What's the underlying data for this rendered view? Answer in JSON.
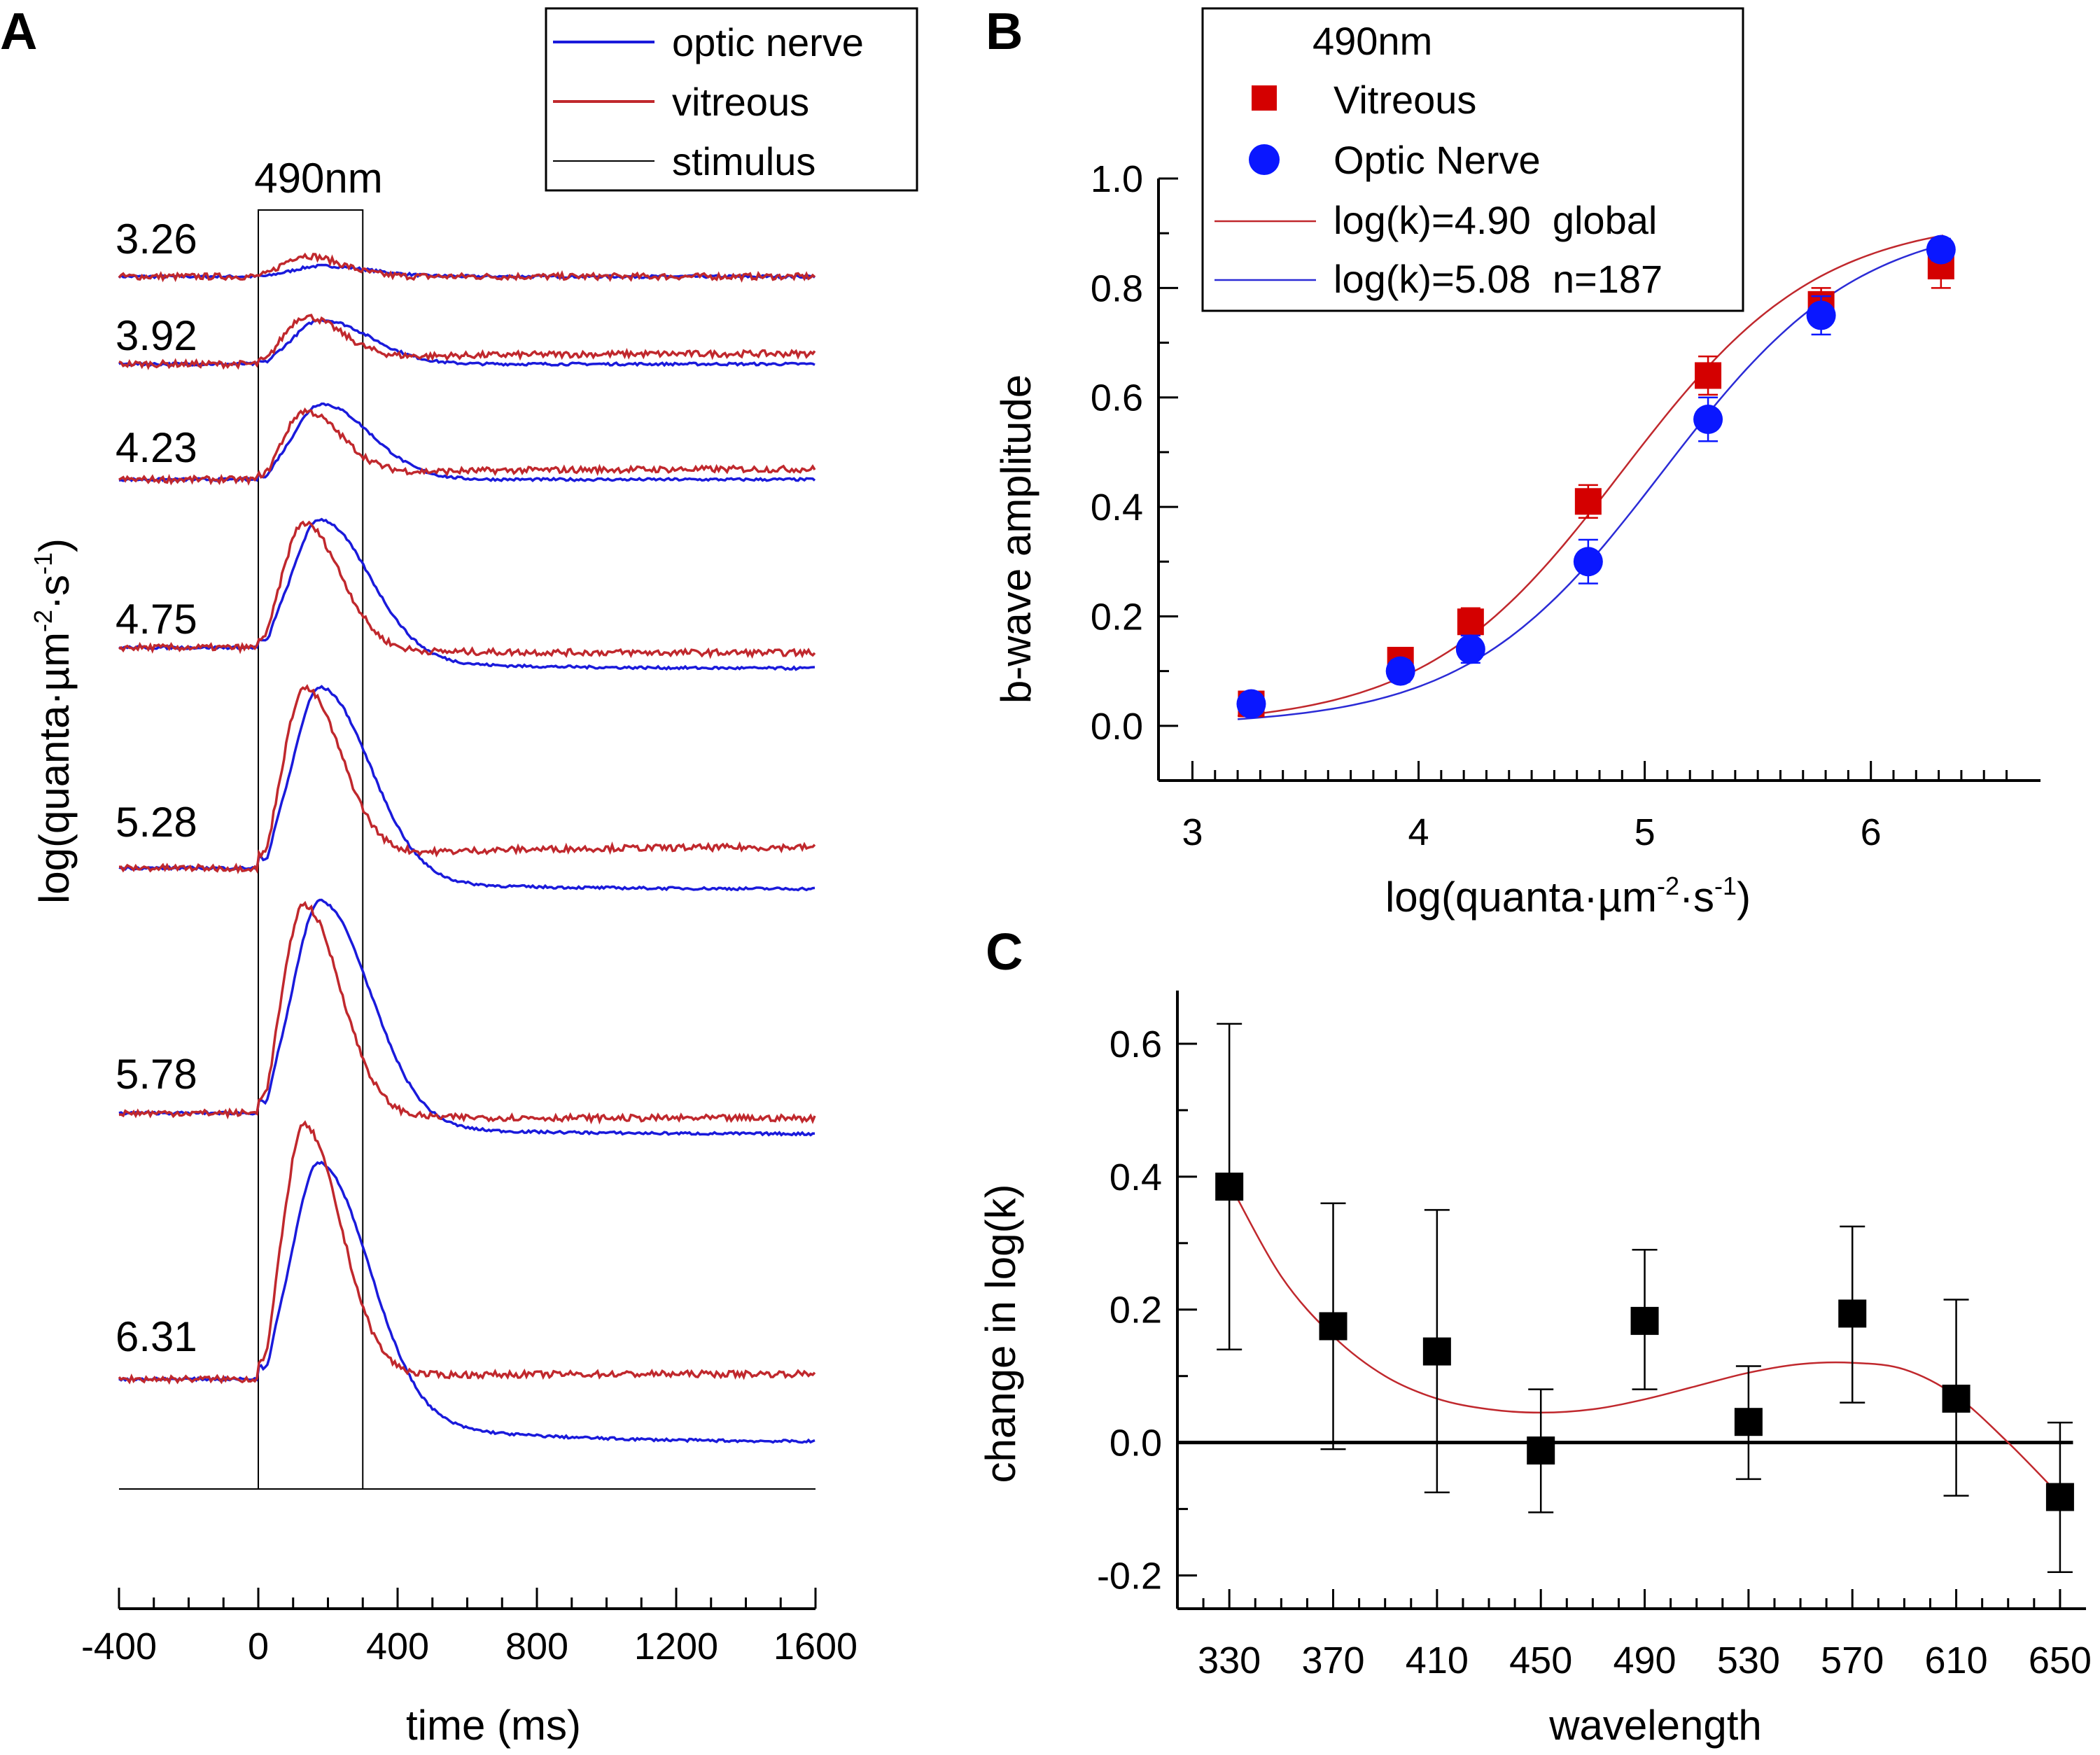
{
  "chart_data": [
    {
      "panel": "A",
      "type": "line",
      "xlabel": "time (ms)",
      "ylabel": "log(quanta·µm-2·s-1)",
      "ylabel_parts": {
        "base": "log(quanta·µm",
        "exp1": "-2",
        "mid": "·s",
        "exp2": "-1",
        "end": ")"
      },
      "xlim": [
        -400,
        1600
      ],
      "xticks": [
        -400,
        0,
        400,
        800,
        1200,
        1600
      ],
      "stimulus_label": "490nm",
      "stimulus_window_ms": [
        0,
        300
      ],
      "legend_placement": "top-right",
      "legend": [
        {
          "name": "optic nerve",
          "color": "#1a1adb"
        },
        {
          "name": "vitreous",
          "color": "#c0282d"
        },
        {
          "name": "stimulus",
          "color": "#000000"
        }
      ],
      "traces": [
        {
          "label": "3.26",
          "base_on": 0.0,
          "base_vit": 0.0,
          "amp_on": 0.1,
          "amp_vit": 0.2,
          "end_on": 0.0,
          "end_vit": 0.0
        },
        {
          "label": "3.92",
          "base_on": 0.0,
          "base_vit": 0.0,
          "amp_on": 0.42,
          "amp_vit": 0.42,
          "end_on": 0.0,
          "end_vit": 0.1
        },
        {
          "label": "4.23",
          "base_on": 0.0,
          "base_vit": 0.0,
          "amp_on": 0.72,
          "amp_vit": 0.62,
          "end_on": 0.0,
          "end_vit": 0.1
        },
        {
          "label": "4.75",
          "base_on": 0.0,
          "base_vit": 0.0,
          "amp_on": 1.3,
          "amp_vit": 1.2,
          "end_on": -0.2,
          "end_vit": -0.05
        },
        {
          "label": "5.28",
          "base_on": 0.0,
          "base_vit": 0.0,
          "amp_on": 1.8,
          "amp_vit": 1.65,
          "end_on": -0.2,
          "end_vit": 0.2
        },
        {
          "label": "5.78",
          "base_on": 0.0,
          "base_vit": 0.0,
          "amp_on": 2.1,
          "amp_vit": 2.0,
          "end_on": -0.2,
          "end_vit": -0.05
        },
        {
          "label": "6.31",
          "base_on": 0.0,
          "base_vit": 0.0,
          "amp_on": 2.3,
          "amp_vit": 2.4,
          "end_on": -0.6,
          "end_vit": 0.05
        }
      ]
    },
    {
      "panel": "B",
      "type": "scatter",
      "xlabel": "log(quanta·µm-2·s-1)",
      "xlabel_parts": {
        "base": "log(quanta·µm",
        "exp1": "-2",
        "mid": "·s",
        "exp2": "-1",
        "end": ")"
      },
      "ylabel": "b-wave amplitude",
      "xlim": [
        2.85,
        6.75
      ],
      "ylim": [
        -0.1,
        1.0
      ],
      "xticks": [
        3,
        4,
        5,
        6
      ],
      "yticks": [
        0.0,
        0.2,
        0.4,
        0.6,
        0.8,
        1.0
      ],
      "legend_title": "490nm",
      "legend_placement": "top-left",
      "series": [
        {
          "name": "Vitreous",
          "color": "#d40000",
          "marker": "square",
          "x": [
            3.26,
            3.92,
            4.23,
            4.75,
            5.28,
            5.78,
            6.31
          ],
          "y": [
            0.04,
            0.12,
            0.19,
            0.41,
            0.64,
            0.77,
            0.84
          ],
          "err": [
            0.02,
            0.02,
            0.025,
            0.03,
            0.035,
            0.03,
            0.04
          ]
        },
        {
          "name": "Optic Nerve",
          "color": "#0a17ff",
          "marker": "circle",
          "x": [
            3.26,
            3.92,
            4.23,
            4.75,
            5.28,
            5.78,
            6.31
          ],
          "y": [
            0.04,
            0.1,
            0.14,
            0.3,
            0.56,
            0.75,
            0.87
          ],
          "err": [
            0.015,
            0.02,
            0.025,
            0.04,
            0.04,
            0.035,
            0.02
          ]
        }
      ],
      "fits": [
        {
          "label": "log(k)=4.90  global",
          "logk": 4.9,
          "color": "#c0282d"
        },
        {
          "label": "log(k)=5.08  n=187",
          "logk": 5.08,
          "color": "#2b2bd6"
        }
      ]
    },
    {
      "panel": "C",
      "type": "scatter",
      "xlabel": "wavelength",
      "ylabel": "change in log(k)",
      "xlim": [
        310,
        660
      ],
      "ylim": [
        -0.25,
        0.68
      ],
      "xticks": [
        330,
        370,
        410,
        450,
        490,
        530,
        570,
        610,
        650
      ],
      "yticks": [
        -0.2,
        0.0,
        0.2,
        0.4,
        0.6
      ],
      "series": [
        {
          "name": "",
          "color": "#000000",
          "marker": "square",
          "x": [
            330,
            370,
            410,
            450,
            490,
            530,
            570,
            610,
            650
          ],
          "y": [
            0.385,
            0.175,
            0.137,
            -0.012,
            0.183,
            0.031,
            0.194,
            0.066,
            -0.082
          ],
          "err_hi": [
            0.63,
            0.36,
            0.35,
            0.08,
            0.29,
            0.115,
            0.325,
            0.215,
            0.03
          ],
          "err_lo": [
            0.14,
            -0.01,
            -0.075,
            -0.105,
            0.08,
            -0.055,
            0.06,
            -0.08,
            -0.195
          ]
        }
      ],
      "fit_color": "#c0282d",
      "fit_curve": {
        "x": [
          330,
          350,
          370,
          390,
          410,
          430,
          450,
          470,
          490,
          510,
          530,
          550,
          570,
          590,
          610,
          630,
          650
        ],
        "y": [
          0.39,
          0.25,
          0.16,
          0.1,
          0.066,
          0.05,
          0.045,
          0.05,
          0.065,
          0.085,
          0.105,
          0.118,
          0.12,
          0.11,
          0.07,
          0.0,
          -0.08
        ]
      }
    }
  ]
}
